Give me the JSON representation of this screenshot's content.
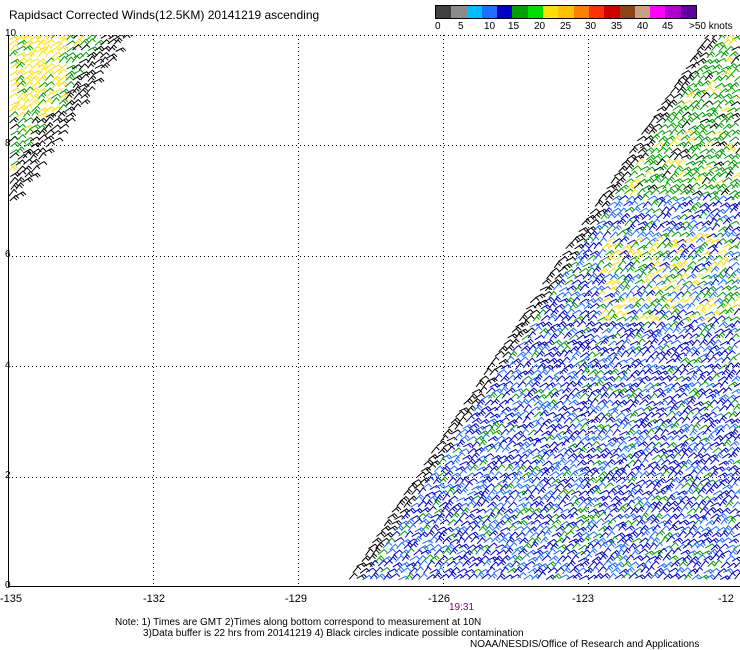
{
  "title": "Rapidsact Corrected Winds(12.5KM) 20141219 ascending",
  "colorbar": {
    "colors": [
      "#404040",
      "#8a8a8a",
      "#00bfff",
      "#1e6fff",
      "#0000c8",
      "#00a000",
      "#00e000",
      "#ffe000",
      "#ffc000",
      "#ff8000",
      "#ff3000",
      "#d00000",
      "#8b4513",
      "#c8a080",
      "#ff00ff",
      "#b000d0",
      "#6000a0"
    ],
    "labels": [
      "0",
      "5",
      "10",
      "15",
      "20",
      "25",
      "30",
      "35",
      "40",
      "45",
      ">50 knots"
    ]
  },
  "y_ticks": [
    "10",
    "8",
    "6",
    "4",
    "2",
    "0"
  ],
  "x_ticks": [
    "-135",
    "-132",
    "-129",
    "-126",
    "-123",
    "-12"
  ],
  "time_label": "19:31",
  "notes": {
    "line1": "Note: 1) Times are GMT 2)Times along bottom correspond to measurement at 10N",
    "line2": "3)Data buffer is 22 hrs from 20141219 4) Black circles indicate possible contamination",
    "credit": "NOAA/NESDIS/Office of Research and Applications"
  },
  "map": {
    "lon_range": [
      -135,
      -120
    ],
    "lat_range": [
      0,
      10
    ],
    "barb_colors": {
      "calm": "#000000",
      "light": "#0000c8",
      "moderate": "#1e6fff",
      "fresh": "#00a000",
      "strong": "#ffe000"
    }
  }
}
